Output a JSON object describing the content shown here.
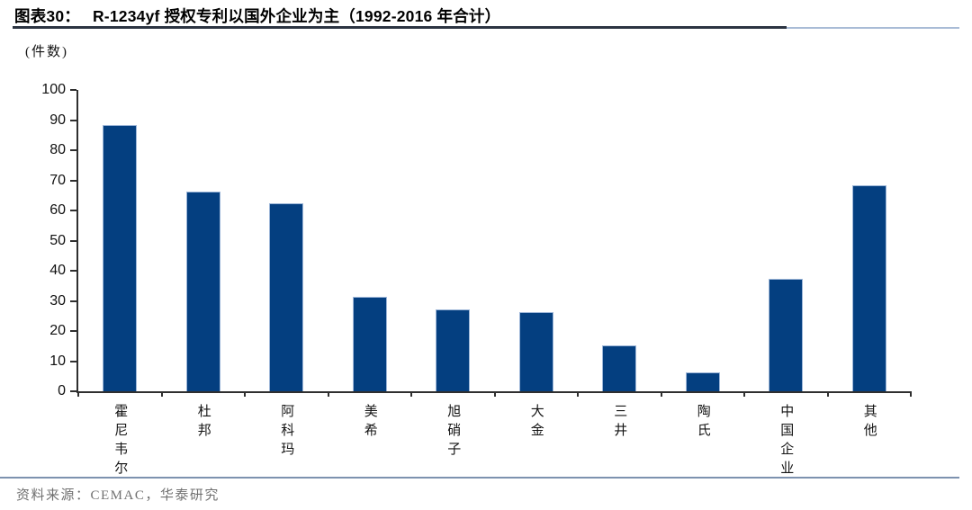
{
  "header": {
    "figure_label": "图表30：",
    "title": "R-1234yf 授权专利以国外企业为主（1992-2016 年合计）"
  },
  "chart": {
    "unit_label": "(件数)"
  },
  "chart_data": {
    "type": "bar",
    "title": "R-1234yf 授权专利以国外企业为主（1992-2016 年合计）",
    "xlabel": "",
    "ylabel": "件数",
    "categories": [
      "霍尼韦尔",
      "杜邦",
      "阿科玛",
      "美希",
      "旭硝子",
      "大金",
      "三井",
      "陶氏",
      "中国企业",
      "其他"
    ],
    "values": [
      88,
      66,
      62,
      31,
      27,
      26,
      15,
      6,
      37,
      68
    ],
    "ylim": [
      0,
      100
    ],
    "ytick_step": 10,
    "grid": false,
    "legend": false,
    "bar_color": "#043f80",
    "bar_border_color": "#9db6d8",
    "axis_color": "#2f2f2f"
  },
  "footer": {
    "source": "资料来源：CEMAC，华泰研究"
  }
}
